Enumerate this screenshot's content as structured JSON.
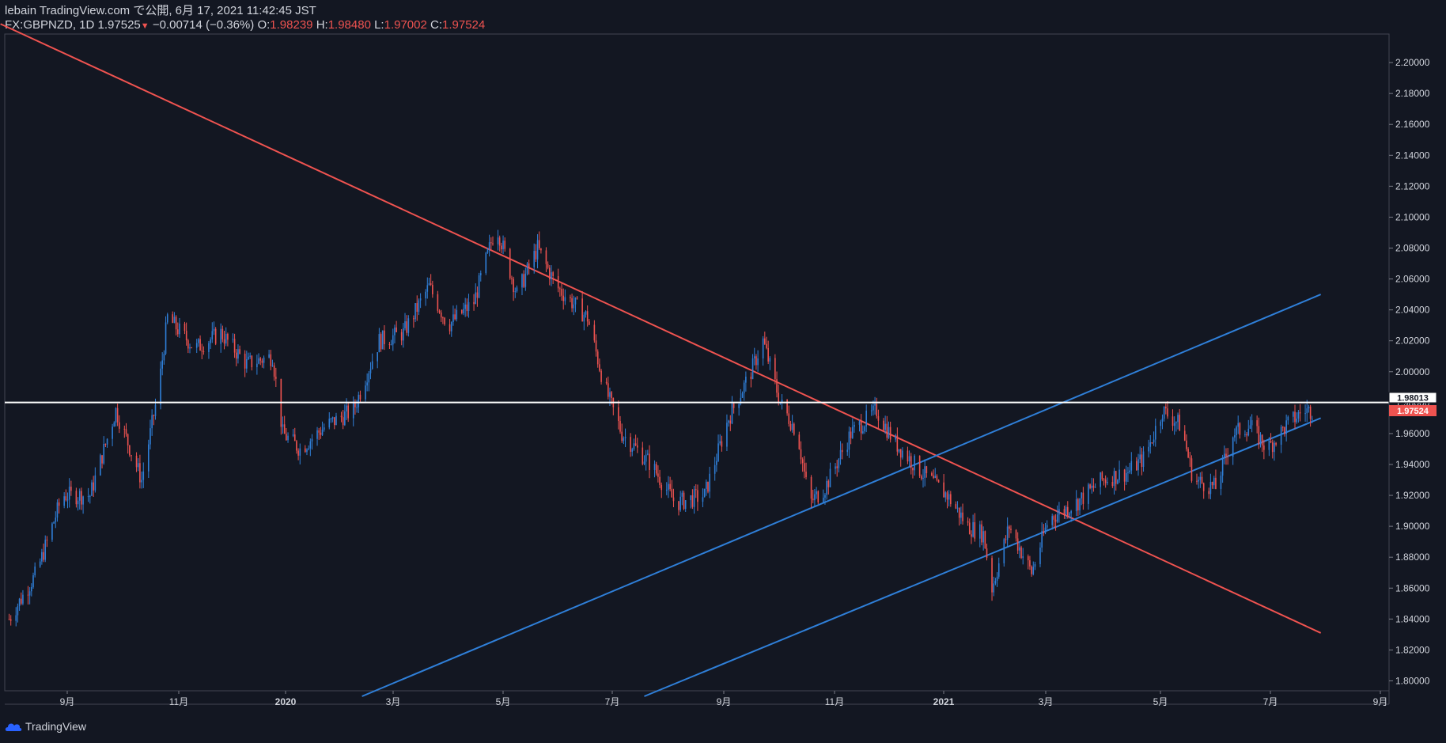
{
  "header": {
    "line1": "lebain TradingView.com で公開, 6月 17, 2021 11:42:45 JST",
    "symbol": "FX:GBPNZD, 1D",
    "last": "1.97525",
    "change": "−0.00714 (−0.36%)",
    "o_label": "O:",
    "o_value": "1.98239",
    "h_label": "H:",
    "h_value": "1.98480",
    "l_label": "L:",
    "l_value": "1.97002",
    "c_label": "C:",
    "c_value": "1.97524"
  },
  "footer": {
    "brand": "TradingView"
  },
  "colors": {
    "background": "#131722",
    "up": "#2f7fd8",
    "down": "#ef5350",
    "text": "#d1d4dc"
  },
  "price_tags": {
    "level": "1.98013",
    "current": "1.97524"
  },
  "chart_data": {
    "type": "candlestick",
    "ylim": [
      1.79,
      2.22
    ],
    "y_ticks": [
      "2.20000",
      "2.18000",
      "2.16000",
      "2.14000",
      "2.12000",
      "2.10000",
      "2.08000",
      "2.06000",
      "2.04000",
      "2.02000",
      "2.00000",
      "1.98000",
      "1.96000",
      "1.94000",
      "1.92000",
      "1.90000",
      "1.88000",
      "1.86000",
      "1.84000",
      "1.82000",
      "1.80000"
    ],
    "x_ticks": [
      {
        "label": "9月",
        "bold": false
      },
      {
        "label": "11月",
        "bold": false
      },
      {
        "label": "2020",
        "bold": true
      },
      {
        "label": "3月",
        "bold": false
      },
      {
        "label": "5月",
        "bold": false
      },
      {
        "label": "7月",
        "bold": false
      },
      {
        "label": "9月",
        "bold": false
      },
      {
        "label": "11月",
        "bold": false
      },
      {
        "label": "2021",
        "bold": true
      },
      {
        "label": "3月",
        "bold": false
      },
      {
        "label": "5月",
        "bold": false
      },
      {
        "label": "7月",
        "bold": false
      },
      {
        "label": "9月",
        "bold": false
      }
    ],
    "horizontal_level": 1.98013,
    "trendlines": [
      {
        "name": "resistance-downtrend",
        "color": "#ef5350",
        "points": [
          [
            "2019-07-20",
            2.225
          ],
          [
            "2021-08-25",
            1.831
          ]
        ]
      },
      {
        "name": "channel-upper",
        "color": "#2f7fd8",
        "points": [
          [
            "2020-02-15",
            1.79
          ],
          [
            "2021-08-25",
            2.05
          ]
        ]
      },
      {
        "name": "channel-lower",
        "color": "#2f7fd8",
        "points": [
          [
            "2020-07-28",
            1.79
          ],
          [
            "2021-08-25",
            1.97
          ]
        ]
      }
    ],
    "price_path": [
      [
        "2019-07-25",
        1.84
      ],
      [
        "2019-08-10",
        1.87
      ],
      [
        "2019-08-25",
        1.92
      ],
      [
        "2019-09-10",
        1.92
      ],
      [
        "2019-09-25",
        1.975
      ],
      [
        "2019-10-10",
        1.93
      ],
      [
        "2019-10-20",
        1.99
      ],
      [
        "2019-10-25",
        2.035
      ],
      [
        "2019-11-10",
        2.015
      ],
      [
        "2019-11-25",
        2.025
      ],
      [
        "2019-12-10",
        2.005
      ],
      [
        "2019-12-25",
        2.01
      ],
      [
        "2019-12-31",
        1.96
      ],
      [
        "2020-01-10",
        1.95
      ],
      [
        "2020-01-25",
        1.965
      ],
      [
        "2020-02-10",
        1.975
      ],
      [
        "2020-02-25",
        2.02
      ],
      [
        "2020-03-10",
        2.025
      ],
      [
        "2020-03-25",
        2.055
      ],
      [
        "2020-04-05",
        2.03
      ],
      [
        "2020-04-20",
        2.045
      ],
      [
        "2020-05-03",
        2.095
      ],
      [
        "2020-05-15",
        2.05
      ],
      [
        "2020-05-27",
        2.08
      ],
      [
        "2020-06-07",
        2.055
      ],
      [
        "2020-06-25",
        2.035
      ],
      [
        "2020-07-05",
        1.99
      ],
      [
        "2020-07-15",
        1.96
      ],
      [
        "2020-08-01",
        1.94
      ],
      [
        "2020-08-15",
        1.915
      ],
      [
        "2020-09-01",
        1.92
      ],
      [
        "2020-09-15",
        1.97
      ],
      [
        "2020-09-28",
        2.0
      ],
      [
        "2020-10-05",
        2.02
      ],
      [
        "2020-10-15",
        1.98
      ],
      [
        "2020-10-25",
        1.96
      ],
      [
        "2020-11-01",
        1.915
      ],
      [
        "2020-11-10",
        1.925
      ],
      [
        "2020-11-25",
        1.96
      ],
      [
        "2020-12-10",
        1.975
      ],
      [
        "2020-12-20",
        1.955
      ],
      [
        "2021-01-05",
        1.935
      ],
      [
        "2021-01-20",
        1.92
      ],
      [
        "2021-02-01",
        1.9
      ],
      [
        "2021-02-10",
        1.895
      ],
      [
        "2021-02-15",
        1.86
      ],
      [
        "2021-02-25",
        1.9
      ],
      [
        "2021-03-10",
        1.87
      ],
      [
        "2021-03-20",
        1.905
      ],
      [
        "2021-04-05",
        1.915
      ],
      [
        "2021-04-20",
        1.93
      ],
      [
        "2021-05-05",
        1.935
      ],
      [
        "2021-05-15",
        1.945
      ],
      [
        "2021-05-25",
        1.975
      ],
      [
        "2021-06-05",
        1.965
      ],
      [
        "2021-06-12",
        1.93
      ],
      [
        "2021-06-25",
        1.925
      ],
      [
        "2021-07-05",
        1.96
      ],
      [
        "2021-07-15",
        1.965
      ],
      [
        "2021-07-25",
        1.95
      ],
      [
        "2021-08-05",
        1.965
      ],
      [
        "2021-08-15",
        1.975
      ],
      [
        "2021-08-20",
        1.975
      ]
    ]
  }
}
